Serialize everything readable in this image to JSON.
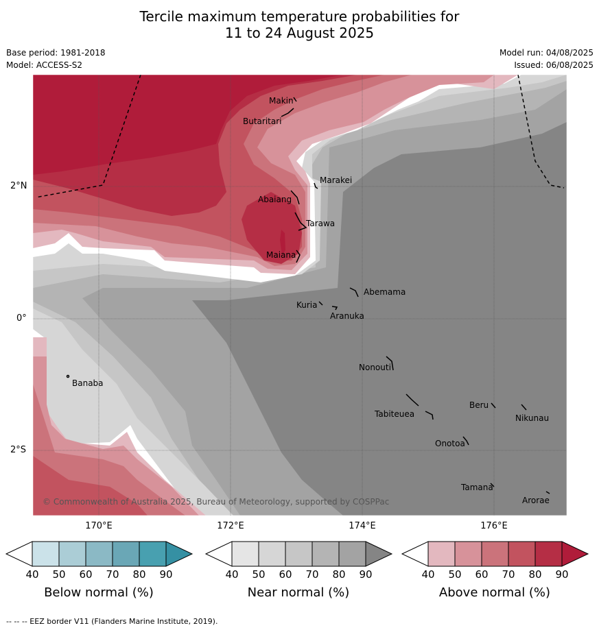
{
  "title": {
    "line1": "Tercile maximum temperature probabilities for",
    "line2": "11 to 24 August 2025"
  },
  "meta": {
    "base_period": "Base period: 1981-2018",
    "model": "Model: ACCESS-S2",
    "model_run": "Model run: 04/08/2025",
    "issued": "Issued: 06/08/2025"
  },
  "map": {
    "lat_labels": [
      "2°N",
      "0°",
      "2°S"
    ],
    "lon_labels": [
      "170°E",
      "172°E",
      "174°E",
      "176°E"
    ],
    "places": [
      "Makin",
      "Butaritari",
      "Marakei",
      "Abaiang",
      "Tarawa",
      "Maiana",
      "Abemama",
      "Kuria",
      "Aranuka",
      "Nonouti",
      "Banaba",
      "Tabiteuea",
      "Beru",
      "Nikunau",
      "Onotoa",
      "Tamana",
      "Arorae"
    ],
    "copyright": "© Commonwealth of Australia 2025, Bureau of Meteorology, supported by COSPPac"
  },
  "colorbars": [
    {
      "title": "Below normal (%)",
      "ticks": [
        "40",
        "50",
        "60",
        "70",
        "80",
        "90"
      ],
      "colors": [
        "#cbe2e9",
        "#abcdd6",
        "#8bb9c5",
        "#6aa7b6",
        "#48a0b0",
        "#3590a3"
      ]
    },
    {
      "title": "Near normal (%)",
      "ticks": [
        "40",
        "50",
        "60",
        "70",
        "80",
        "90"
      ],
      "colors": [
        "#e5e5e5",
        "#d6d6d6",
        "#c6c6c6",
        "#b4b4b4",
        "#a3a3a3",
        "#858585"
      ]
    },
    {
      "title": "Above normal (%)",
      "ticks": [
        "40",
        "50",
        "60",
        "70",
        "80",
        "90"
      ],
      "colors": [
        "#e3b8bf",
        "#d7929a",
        "#cb737b",
        "#c2535f",
        "#b52e45",
        "#b01c3a"
      ]
    }
  ],
  "footer": "-- -- -- EEZ border V11 (Flanders Marine Institute, 2019)."
}
